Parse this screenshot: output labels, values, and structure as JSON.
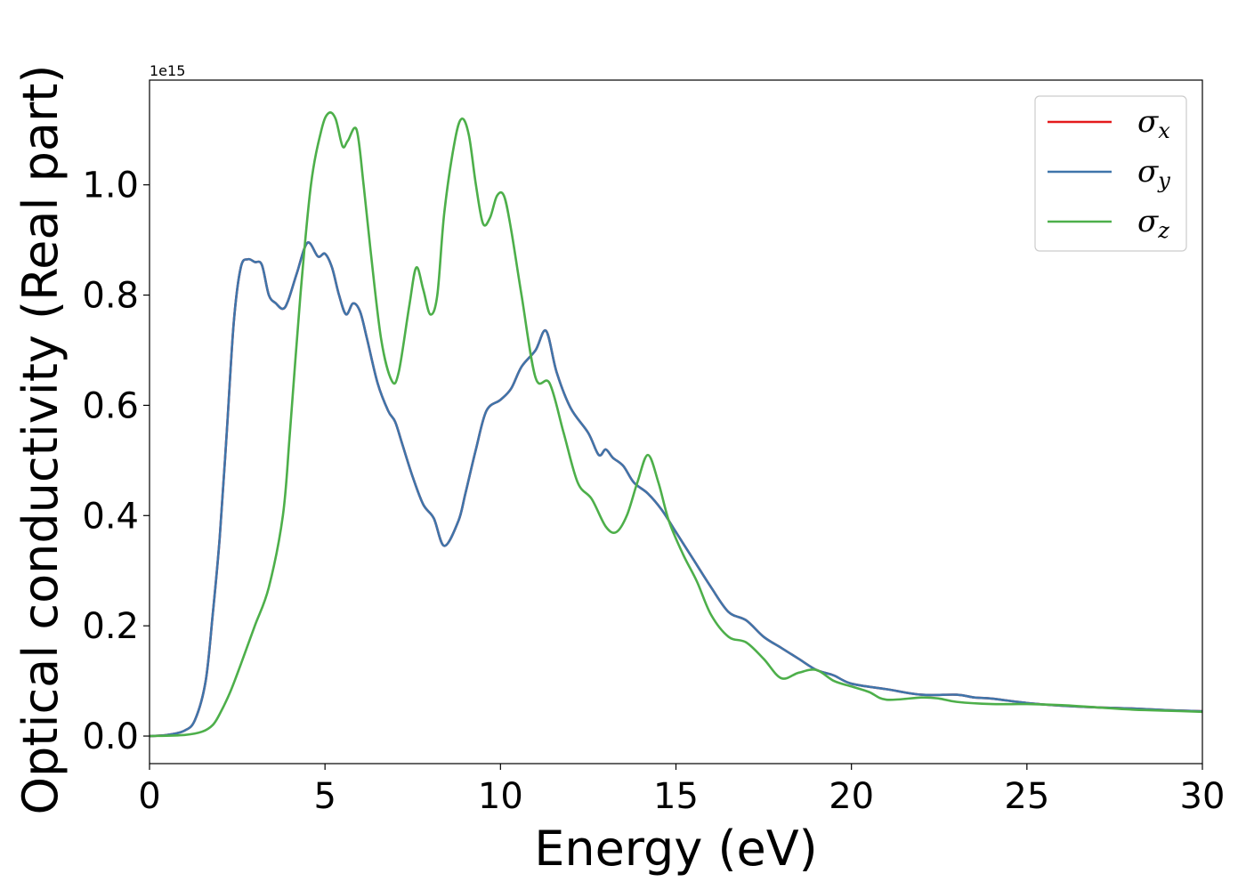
{
  "chart_data": {
    "type": "line",
    "title": "",
    "xlabel": "Energy (eV)",
    "ylabel": "Optical conductivity (Real part)",
    "y_offset_label": "1e15",
    "xlim": [
      0,
      30
    ],
    "ylim": [
      -0.05,
      1.19
    ],
    "xticks": [
      0,
      5,
      10,
      15,
      20,
      25,
      30
    ],
    "xtick_labels": [
      "0",
      "5",
      "10",
      "15",
      "20",
      "25",
      "30"
    ],
    "yticks": [
      0.0,
      0.2,
      0.4,
      0.6,
      0.8,
      1.0
    ],
    "ytick_labels": [
      "0.0",
      "0.2",
      "0.4",
      "0.6",
      "0.8",
      "1.0"
    ],
    "grid": false,
    "legend_position": "top-right",
    "series": [
      {
        "name": "σx",
        "legend_symbol": "σ",
        "legend_subscript": "x",
        "color": "#e41a1c",
        "x": [
          0,
          0.5,
          1.0,
          1.3,
          1.6,
          1.8,
          2.0,
          2.2,
          2.4,
          2.6,
          2.8,
          3.0,
          3.2,
          3.4,
          3.6,
          3.8,
          3.95,
          4.2,
          4.5,
          4.8,
          5.0,
          5.2,
          5.4,
          5.6,
          5.8,
          6.0,
          6.2,
          6.5,
          6.8,
          7.0,
          7.2,
          7.5,
          7.8,
          8.1,
          8.4,
          8.8,
          9.0,
          9.3,
          9.6,
          10.0,
          10.3,
          10.6,
          11.0,
          11.3,
          11.6,
          12.0,
          12.5,
          12.8,
          13.0,
          13.2,
          13.5,
          13.8,
          14.2,
          14.6,
          15.0,
          15.5,
          16.0,
          16.5,
          17.0,
          17.5,
          18.0,
          18.5,
          19.0,
          19.5,
          20.0,
          21.0,
          22.0,
          23.0,
          23.5,
          24.0,
          25.0,
          26.0,
          27.0,
          28.0,
          29.0,
          30.0
        ],
        "y": [
          0,
          0.002,
          0.01,
          0.03,
          0.1,
          0.22,
          0.36,
          0.55,
          0.75,
          0.85,
          0.865,
          0.86,
          0.855,
          0.8,
          0.785,
          0.775,
          0.79,
          0.84,
          0.895,
          0.87,
          0.875,
          0.85,
          0.8,
          0.765,
          0.785,
          0.77,
          0.72,
          0.64,
          0.59,
          0.57,
          0.53,
          0.47,
          0.42,
          0.395,
          0.345,
          0.39,
          0.44,
          0.52,
          0.59,
          0.61,
          0.63,
          0.67,
          0.7,
          0.735,
          0.66,
          0.595,
          0.55,
          0.51,
          0.52,
          0.505,
          0.49,
          0.46,
          0.44,
          0.41,
          0.37,
          0.32,
          0.27,
          0.225,
          0.21,
          0.18,
          0.16,
          0.14,
          0.12,
          0.11,
          0.095,
          0.085,
          0.075,
          0.075,
          0.07,
          0.068,
          0.06,
          0.055,
          0.052,
          0.05,
          0.047,
          0.045
        ]
      },
      {
        "name": "σy",
        "legend_symbol": "σ",
        "legend_subscript": "y",
        "color": "#3f75aa",
        "x": [
          0,
          0.5,
          1.0,
          1.3,
          1.6,
          1.8,
          2.0,
          2.2,
          2.4,
          2.6,
          2.8,
          3.0,
          3.2,
          3.4,
          3.6,
          3.8,
          3.95,
          4.2,
          4.5,
          4.8,
          5.0,
          5.2,
          5.4,
          5.6,
          5.8,
          6.0,
          6.2,
          6.5,
          6.8,
          7.0,
          7.2,
          7.5,
          7.8,
          8.1,
          8.4,
          8.8,
          9.0,
          9.3,
          9.6,
          10.0,
          10.3,
          10.6,
          11.0,
          11.3,
          11.6,
          12.0,
          12.5,
          12.8,
          13.0,
          13.2,
          13.5,
          13.8,
          14.2,
          14.6,
          15.0,
          15.5,
          16.0,
          16.5,
          17.0,
          17.5,
          18.0,
          18.5,
          19.0,
          19.5,
          20.0,
          21.0,
          22.0,
          23.0,
          23.5,
          24.0,
          25.0,
          26.0,
          27.0,
          28.0,
          29.0,
          30.0
        ],
        "y": [
          0,
          0.002,
          0.01,
          0.03,
          0.1,
          0.22,
          0.36,
          0.55,
          0.75,
          0.85,
          0.865,
          0.86,
          0.855,
          0.8,
          0.785,
          0.775,
          0.79,
          0.84,
          0.895,
          0.87,
          0.875,
          0.85,
          0.8,
          0.765,
          0.785,
          0.77,
          0.72,
          0.64,
          0.59,
          0.57,
          0.53,
          0.47,
          0.42,
          0.395,
          0.345,
          0.39,
          0.44,
          0.52,
          0.59,
          0.61,
          0.63,
          0.67,
          0.7,
          0.735,
          0.66,
          0.595,
          0.55,
          0.51,
          0.52,
          0.505,
          0.49,
          0.46,
          0.44,
          0.41,
          0.37,
          0.32,
          0.27,
          0.225,
          0.21,
          0.18,
          0.16,
          0.14,
          0.12,
          0.11,
          0.095,
          0.085,
          0.075,
          0.075,
          0.07,
          0.068,
          0.06,
          0.055,
          0.052,
          0.05,
          0.047,
          0.045
        ]
      },
      {
        "name": "σz",
        "legend_symbol": "σ",
        "legend_subscript": "z",
        "color": "#4daf4a",
        "x": [
          0,
          1.0,
          1.5,
          1.8,
          2.0,
          2.3,
          2.6,
          3.0,
          3.4,
          3.8,
          4.0,
          4.3,
          4.6,
          4.9,
          5.1,
          5.3,
          5.5,
          5.65,
          5.9,
          6.1,
          6.3,
          6.6,
          6.9,
          7.1,
          7.4,
          7.6,
          7.8,
          8.0,
          8.2,
          8.4,
          8.7,
          8.9,
          9.1,
          9.3,
          9.5,
          9.7,
          9.9,
          10.1,
          10.3,
          10.6,
          11.0,
          11.4,
          11.8,
          12.2,
          12.6,
          13.0,
          13.3,
          13.6,
          13.9,
          14.2,
          14.5,
          14.8,
          15.2,
          15.6,
          16.0,
          16.5,
          17.0,
          17.5,
          18.0,
          18.5,
          19.0,
          19.5,
          20.0,
          20.5,
          21.0,
          22.0,
          22.5,
          23.0,
          24.0,
          25.0,
          26.0,
          27.0,
          28.0,
          29.0,
          30.0
        ],
        "y": [
          0,
          0.002,
          0.008,
          0.02,
          0.04,
          0.08,
          0.13,
          0.2,
          0.27,
          0.4,
          0.55,
          0.8,
          1.0,
          1.1,
          1.13,
          1.12,
          1.07,
          1.08,
          1.1,
          1.0,
          0.88,
          0.72,
          0.645,
          0.66,
          0.78,
          0.85,
          0.81,
          0.765,
          0.8,
          0.95,
          1.08,
          1.12,
          1.09,
          1.0,
          0.93,
          0.94,
          0.98,
          0.98,
          0.92,
          0.8,
          0.65,
          0.64,
          0.55,
          0.46,
          0.43,
          0.38,
          0.37,
          0.4,
          0.46,
          0.51,
          0.46,
          0.39,
          0.33,
          0.28,
          0.22,
          0.18,
          0.17,
          0.14,
          0.105,
          0.115,
          0.12,
          0.1,
          0.09,
          0.08,
          0.066,
          0.07,
          0.068,
          0.062,
          0.058,
          0.058,
          0.056,
          0.052,
          0.048,
          0.046,
          0.044
        ]
      }
    ]
  }
}
